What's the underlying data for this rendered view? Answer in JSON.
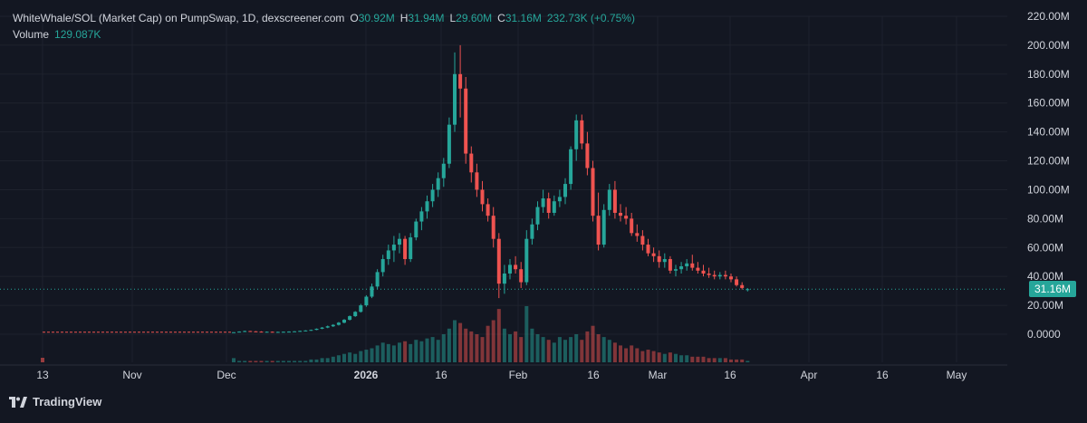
{
  "legend": {
    "title": "WhiteWhale/SOL (Market Cap) on PumpSwap, 1D, dexscreener.com",
    "o_key": "O",
    "o_val": "30.92M",
    "h_key": "H",
    "h_val": "31.94M",
    "l_key": "L",
    "l_val": "29.60M",
    "c_key": "C",
    "c_val": "31.16M",
    "change": "232.73K (+0.75%)",
    "volume_label": "Volume",
    "volume_val": "129.087K"
  },
  "last_price_label": "31.16M",
  "brand": {
    "name": "TradingView",
    "logo_icon": "tradingview-logo-icon"
  },
  "colors": {
    "up": "#26a69a",
    "down": "#ef5350",
    "background": "#131722",
    "grid": "#1e222d",
    "text": "#d1d4dc"
  },
  "chart_data": {
    "type": "candlestick",
    "yaxis": {
      "min": 0,
      "max": 220,
      "unit": "M",
      "ticks": [
        "220.00M",
        "200.00M",
        "180.00M",
        "160.00M",
        "140.00M",
        "120.00M",
        "100.00M",
        "80.00M",
        "60.00M",
        "40.00M",
        "20.00M",
        "0.0000"
      ]
    },
    "xaxis": {
      "ticks": [
        "13",
        "Nov",
        "Dec",
        "2026",
        "16",
        "Feb",
        "16",
        "Mar",
        "16",
        "Apr",
        "16",
        "May"
      ],
      "bold": [
        "2026"
      ]
    },
    "last_price": 31.16,
    "series": [
      {
        "name": "market_cap",
        "values": [
          [
            1.4,
            1.4,
            1.2,
            1.4
          ],
          [
            1.4,
            2.0,
            1.2,
            1.8
          ],
          [
            1.8,
            2.5,
            1.5,
            2.2
          ],
          [
            2.2,
            2.3,
            1.8,
            2.0
          ],
          [
            2.0,
            2.2,
            1.6,
            1.8
          ],
          [
            1.8,
            2.0,
            1.5,
            1.6
          ],
          [
            1.6,
            1.9,
            1.4,
            1.7
          ],
          [
            1.7,
            1.9,
            1.3,
            1.5
          ],
          [
            1.5,
            1.8,
            1.3,
            1.6
          ],
          [
            1.6,
            1.9,
            1.4,
            1.7
          ],
          [
            1.7,
            2.0,
            1.5,
            1.8
          ],
          [
            1.8,
            2.2,
            1.6,
            2.0
          ],
          [
            2.0,
            2.5,
            1.8,
            2.3
          ],
          [
            2.3,
            2.8,
            2.0,
            2.6
          ],
          [
            2.6,
            3.2,
            2.4,
            3.0
          ],
          [
            3.0,
            4.0,
            2.8,
            3.8
          ],
          [
            3.8,
            5.0,
            3.5,
            4.6
          ],
          [
            4.6,
            6.0,
            4.2,
            5.5
          ],
          [
            5.5,
            7.0,
            5.0,
            6.5
          ],
          [
            6.5,
            8.5,
            6.0,
            8.0
          ],
          [
            8.0,
            10.5,
            7.5,
            10.0
          ],
          [
            10.0,
            13.0,
            9.5,
            12.5
          ],
          [
            12.5,
            16.0,
            12.0,
            15.5
          ],
          [
            15.5,
            21.0,
            15.0,
            20.0
          ],
          [
            20.0,
            27.0,
            19.0,
            26.0
          ],
          [
            26.0,
            35.0,
            25.0,
            33.0
          ],
          [
            33.0,
            45.0,
            31.0,
            43.0
          ],
          [
            43.0,
            55.0,
            40.0,
            52.0
          ],
          [
            52.0,
            62.0,
            48.0,
            58.0
          ],
          [
            58.0,
            68.0,
            50.0,
            62.0
          ],
          [
            62.0,
            70.0,
            56.0,
            66.0
          ],
          [
            66.0,
            68.0,
            48.0,
            52.0
          ],
          [
            52.0,
            70.0,
            50.0,
            67.0
          ],
          [
            67.0,
            80.0,
            65.0,
            78.0
          ],
          [
            78.0,
            88.0,
            72.0,
            85.0
          ],
          [
            85.0,
            96.0,
            80.0,
            92.0
          ],
          [
            92.0,
            104.0,
            88.0,
            100.0
          ],
          [
            100.0,
            112.0,
            95.0,
            108.0
          ],
          [
            108.0,
            122.0,
            102.0,
            118.0
          ],
          [
            118.0,
            150.0,
            115.0,
            145.0
          ],
          [
            145.0,
            195.0,
            140.0,
            180.0
          ],
          [
            180.0,
            200.0,
            150.0,
            170.0
          ],
          [
            170.0,
            178.0,
            118.0,
            125.0
          ],
          [
            125.0,
            130.0,
            105.0,
            112.0
          ],
          [
            112.0,
            118.0,
            95.0,
            100.0
          ],
          [
            100.0,
            106.0,
            85.0,
            90.0
          ],
          [
            90.0,
            94.0,
            78.0,
            82.0
          ],
          [
            82.0,
            88.0,
            60.0,
            66.0
          ],
          [
            66.0,
            70.0,
            25.0,
            35.0
          ],
          [
            35.0,
            48.0,
            28.0,
            42.0
          ],
          [
            42.0,
            52.0,
            38.0,
            48.0
          ],
          [
            48.0,
            54.0,
            42.0,
            45.0
          ],
          [
            45.0,
            50.0,
            32.0,
            36.0
          ],
          [
            36.0,
            72.0,
            34.0,
            66.0
          ],
          [
            66.0,
            80.0,
            62.0,
            76.0
          ],
          [
            76.0,
            92.0,
            72.0,
            88.0
          ],
          [
            88.0,
            100.0,
            84.0,
            94.0
          ],
          [
            94.0,
            98.0,
            80.0,
            84.0
          ],
          [
            84.0,
            96.0,
            82.0,
            92.0
          ],
          [
            92.0,
            100.0,
            88.0,
            95.0
          ],
          [
            95.0,
            108.0,
            90.0,
            104.0
          ],
          [
            104.0,
            130.0,
            100.0,
            128.0
          ],
          [
            128.0,
            152.0,
            120.0,
            148.0
          ],
          [
            148.0,
            152.0,
            128.0,
            132.0
          ],
          [
            132.0,
            140.0,
            110.0,
            115.0
          ],
          [
            115.0,
            120.0,
            78.0,
            82.0
          ],
          [
            82.0,
            98.0,
            58.0,
            62.0
          ],
          [
            62.0,
            90.0,
            60.0,
            86.0
          ],
          [
            86.0,
            104.0,
            82.0,
            100.0
          ],
          [
            100.0,
            106.0,
            80.0,
            84.0
          ],
          [
            84.0,
            90.0,
            78.0,
            82.0
          ],
          [
            82.0,
            88.0,
            76.0,
            80.0
          ],
          [
            80.0,
            84.0,
            68.0,
            70.0
          ],
          [
            70.0,
            76.0,
            64.0,
            68.0
          ],
          [
            68.0,
            72.0,
            58.0,
            62.0
          ],
          [
            62.0,
            66.0,
            54.0,
            56.0
          ],
          [
            56.0,
            60.0,
            50.0,
            54.0
          ],
          [
            54.0,
            58.0,
            46.0,
            50.0
          ],
          [
            50.0,
            56.0,
            46.0,
            52.0
          ],
          [
            52.0,
            54.0,
            42.0,
            44.0
          ],
          [
            44.0,
            48.0,
            40.0,
            45.0
          ],
          [
            45.0,
            50.0,
            42.0,
            47.0
          ],
          [
            47.0,
            52.0,
            44.0,
            49.0
          ],
          [
            49.0,
            55.0,
            44.0,
            46.0
          ],
          [
            46.0,
            50.0,
            42.0,
            44.0
          ],
          [
            44.0,
            48.0,
            40.0,
            42.0
          ],
          [
            42.0,
            46.0,
            39.0,
            41.0
          ],
          [
            41.0,
            44.0,
            38.0,
            40.0
          ],
          [
            40.0,
            43.0,
            38.0,
            41.0
          ],
          [
            41.0,
            44.0,
            38.0,
            40.0
          ],
          [
            40.0,
            42.0,
            36.0,
            38.0
          ],
          [
            38.0,
            40.0,
            33.0,
            34.0
          ],
          [
            34.0,
            36.0,
            31.0,
            32.0
          ],
          [
            30.92,
            31.94,
            29.6,
            31.16
          ]
        ]
      },
      {
        "name": "volume",
        "values": [
          3,
          1,
          1,
          1,
          1,
          1,
          1,
          1,
          1,
          1,
          1,
          1,
          1,
          1,
          2,
          2,
          3,
          3,
          4,
          5,
          6,
          7,
          6,
          8,
          9,
          10,
          12,
          14,
          13,
          12,
          14,
          15,
          13,
          16,
          15,
          17,
          18,
          16,
          20,
          24,
          30,
          28,
          24,
          22,
          20,
          18,
          26,
          30,
          38,
          24,
          20,
          22,
          18,
          40,
          24,
          20,
          18,
          16,
          14,
          18,
          16,
          18,
          20,
          16,
          22,
          26,
          20,
          18,
          16,
          14,
          12,
          10,
          12,
          10,
          8,
          9,
          8,
          7,
          6,
          7,
          6,
          5,
          5,
          4,
          4,
          4,
          3,
          3,
          3,
          3,
          2,
          2,
          2,
          1
        ]
      }
    ]
  }
}
